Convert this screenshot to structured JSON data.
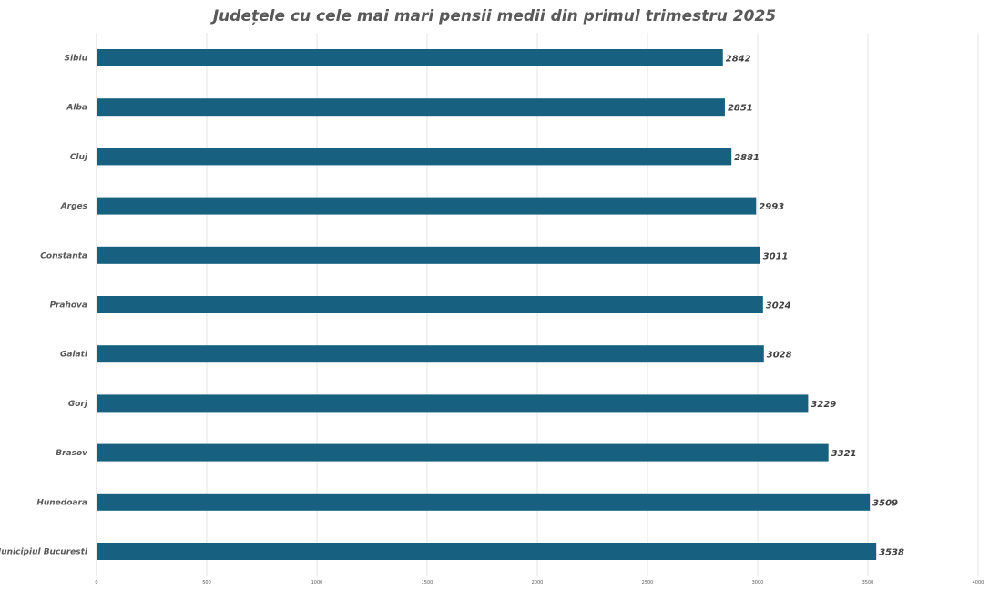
{
  "chart_data": {
    "type": "bar",
    "orientation": "horizontal",
    "title": "Județele cu cele mai mari pensii medii din primul trimestru 2025",
    "categories": [
      "Sibiu",
      "Alba",
      "Cluj",
      "Arges",
      "Constanta",
      "Prahova",
      "Galati",
      "Gorj",
      "Brasov",
      "Hunedoara",
      "Municipiul Bucuresti"
    ],
    "values": [
      2842,
      2851,
      2881,
      2993,
      3011,
      3024,
      3028,
      3229,
      3321,
      3509,
      3538
    ],
    "xlim": [
      0,
      4000
    ],
    "xticks": [
      0,
      500,
      1000,
      1500,
      2000,
      2500,
      3000,
      3500,
      4000
    ],
    "grid": true,
    "legend": "none",
    "data_labels": true,
    "colors": {
      "bar": "#17607f"
    }
  }
}
